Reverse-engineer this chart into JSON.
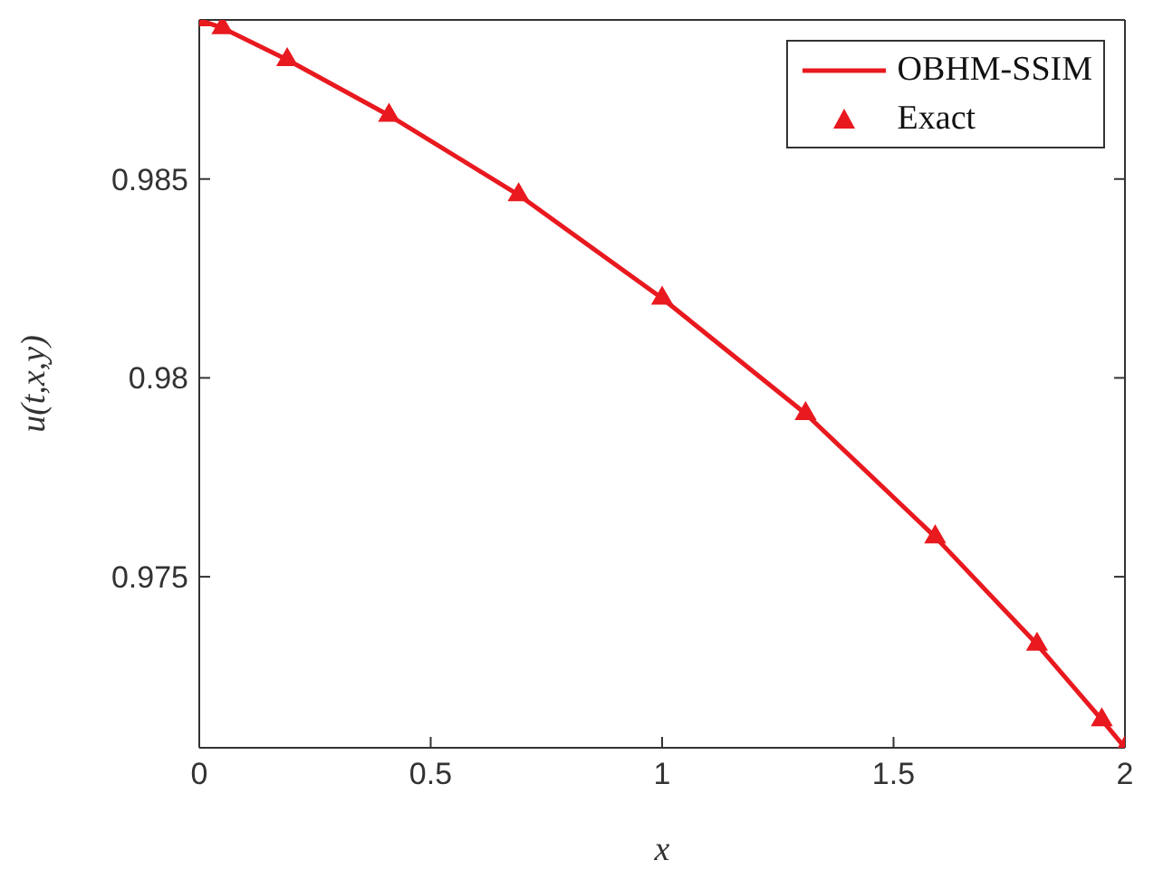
{
  "chart_data": {
    "type": "line",
    "xlabel": "x",
    "ylabel": "u(t,x,y)",
    "xlim": [
      0,
      2
    ],
    "xticks": [
      0,
      0.5,
      1,
      1.5,
      2
    ],
    "ylim": [
      0.9707,
      0.989
    ],
    "yticks": [
      0.975,
      0.98,
      0.985
    ],
    "legend": "top right",
    "x": [
      0,
      0.05,
      0.19,
      0.41,
      0.69,
      1.0,
      1.31,
      1.59,
      1.81,
      1.95,
      2.0
    ],
    "series": [
      {
        "name": "OBHM-SSIM",
        "type": "line",
        "color": "#e8191f",
        "marker": "none",
        "values": [
          0.989,
          0.9888,
          0.988,
          0.9866,
          0.9846,
          0.982,
          0.9791,
          0.976,
          0.9733,
          0.9714,
          0.9707
        ]
      },
      {
        "name": "Exact",
        "type": "scatter",
        "color": "#e8191f",
        "marker": "triangle",
        "values": [
          0.989,
          0.9888,
          0.988,
          0.9866,
          0.9846,
          0.982,
          0.9791,
          0.976,
          0.9733,
          0.9714,
          0.9707
        ]
      }
    ]
  }
}
